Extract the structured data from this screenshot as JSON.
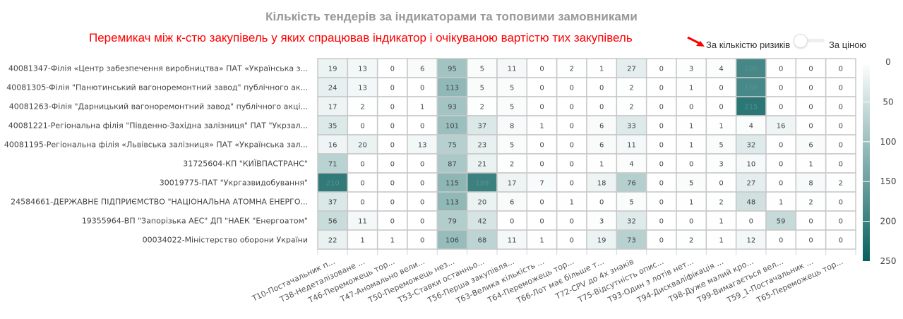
{
  "header": {
    "title": "Кількість тендерів за індикаторами та топовими замовниками",
    "annotation": "Перемикач між к-стю закупівель у яких спрацював індикатор і очікуваною вартістю тих закупівель",
    "toggle_left_label": "За кількістю ризиків",
    "toggle_right_label": "За ціною",
    "toggle_state": "left"
  },
  "colors": {
    "low": "#ffffff",
    "high": "#08615f",
    "annotation": "#ff0000"
  },
  "chart_data": {
    "type": "heatmap",
    "title": "Кількість тендерів за індикаторами та топовими замовниками",
    "x": [
      "T10-Постачальник п...",
      "T38-Недеталізоване ...",
      "T46-Переможець тор...",
      "T47-Аномально вели...",
      "T50-Переможець нез...",
      "T53-Ставки останньо...",
      "T56-Перша закупівля...",
      "T63-Велика кількість ...",
      "T64-Переможець тор...",
      "T66-Лот має більше т...",
      "T72-CPV до 4х знаків",
      "T75-Відсутність опис...",
      "T93-Один з лотів нет...",
      "T94-Дискваліфікація ...",
      "T98-Дуже малий кро...",
      "T99-Вимагається вел...",
      "T59_1-Постачальник ...",
      "T65-Переможець тор..."
    ],
    "y": [
      "40081347-Філія «Центр забезпечення виробництва» ПАТ «Українська з...",
      "40081305-Філія \"Панютинський вагоноремонтний завод\" публічного ак...",
      "40081263-Філія \"Дарницький вагоноремонтний завод\" публічного акці...",
      "40081221-Регіональна філія \"Південно-Західна залізниця\" ПАТ \"Укрзал...",
      "40081195-Регіональна філія «Львівська залізниця» ПАТ «Українська зал...",
      "31725604-КП \"КИЇВПАСТРАНС\"",
      "30019775-ПАТ \"Укргазвидобування\"",
      "24584661-ДЕРЖАВНЕ ПІДПРИЄМСТВО \"НАЦІОНАЛЬНА АТОМНА ЕНЕРГО...",
      "19355964-ВП \"Запорізька АЕС\" ДП \"НАЕК \"Енергоатом\"",
      "00034022-Міністерство оборони України"
    ],
    "values": [
      [
        19,
        13,
        0,
        6,
        95,
        5,
        11,
        0,
        2,
        1,
        27,
        0,
        3,
        4,
        188,
        0,
        0,
        0
      ],
      [
        24,
        13,
        0,
        0,
        113,
        5,
        5,
        0,
        0,
        0,
        2,
        0,
        1,
        0,
        186,
        0,
        0,
        0
      ],
      [
        17,
        2,
        0,
        1,
        93,
        2,
        5,
        0,
        0,
        0,
        2,
        0,
        0,
        0,
        215,
        0,
        0,
        0
      ],
      [
        35,
        0,
        0,
        0,
        101,
        37,
        8,
        1,
        0,
        6,
        33,
        0,
        1,
        1,
        4,
        16,
        0,
        0
      ],
      [
        16,
        20,
        0,
        13,
        75,
        23,
        5,
        0,
        0,
        6,
        11,
        0,
        1,
        5,
        32,
        0,
        6,
        0
      ],
      [
        71,
        0,
        0,
        0,
        87,
        21,
        2,
        0,
        0,
        1,
        4,
        0,
        0,
        3,
        10,
        0,
        1,
        0
      ],
      [
        210,
        0,
        0,
        0,
        115,
        199,
        17,
        7,
        0,
        18,
        76,
        0,
        5,
        0,
        27,
        0,
        8,
        2
      ],
      [
        37,
        0,
        0,
        0,
        113,
        20,
        6,
        0,
        1,
        0,
        5,
        0,
        1,
        2,
        48,
        1,
        2,
        0
      ],
      [
        56,
        11,
        0,
        0,
        79,
        42,
        0,
        0,
        0,
        3,
        32,
        0,
        0,
        1,
        0,
        59,
        0,
        0
      ],
      [
        22,
        1,
        1,
        0,
        106,
        68,
        11,
        1,
        0,
        19,
        73,
        0,
        2,
        1,
        12,
        0,
        0,
        0
      ]
    ],
    "colorbar": {
      "min": 0,
      "max": 250,
      "ticks": [
        "0",
        "50",
        "100",
        "150",
        "200",
        "250"
      ],
      "placement": "right"
    }
  }
}
